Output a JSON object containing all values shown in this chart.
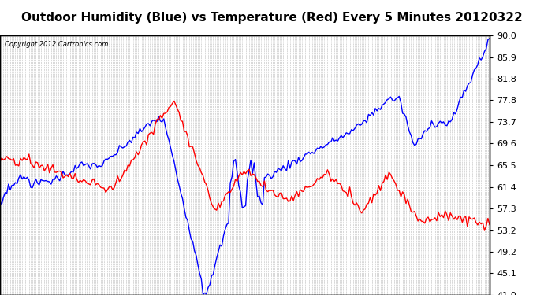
{
  "title": "Outdoor Humidity (Blue) vs Temperature (Red) Every 5 Minutes 20120322",
  "copyright": "Copyright 2012 Cartronics.com",
  "title_fontsize": 11,
  "title_bg": "#e0e0e0",
  "background_color": "#ffffff",
  "plot_bg_color": "#ffffff",
  "grid_color": "#aaaaaa",
  "blue_color": "#0000ff",
  "red_color": "#ff0000",
  "ylim": [
    41.0,
    90.0
  ],
  "yticks": [
    90.0,
    85.9,
    81.8,
    77.8,
    73.7,
    69.6,
    65.5,
    61.4,
    57.3,
    53.2,
    49.2,
    45.1,
    41.0
  ],
  "line_width": 1.0,
  "n_points": 288
}
